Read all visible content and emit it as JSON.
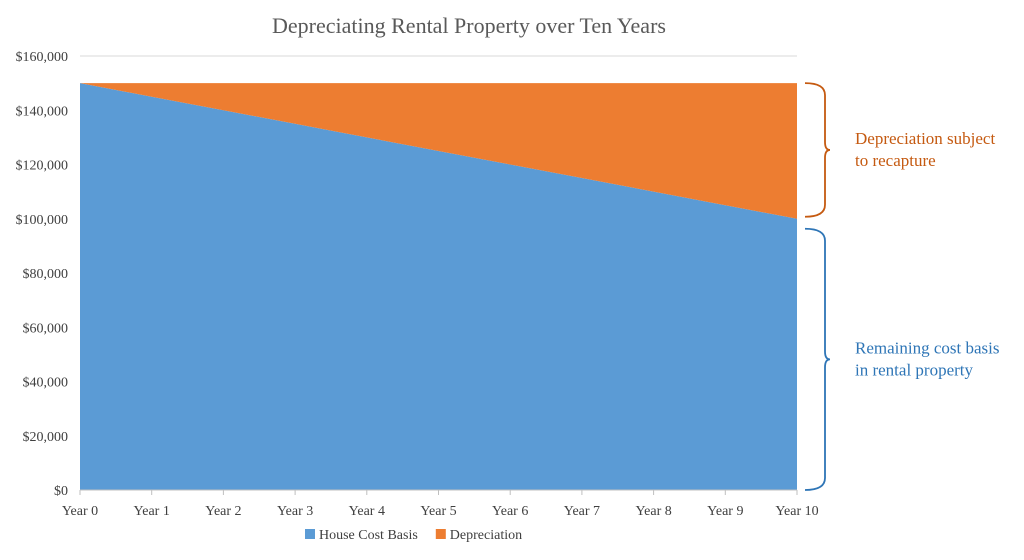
{
  "chart_data": {
    "type": "area",
    "stacked": true,
    "title": "Depreciating Rental Property over Ten Years",
    "xlabel": "",
    "ylabel": "",
    "categories": [
      "Year 0",
      "Year 1",
      "Year 2",
      "Year 3",
      "Year 4",
      "Year 5",
      "Year 6",
      "Year 7",
      "Year 8",
      "Year 9",
      "Year 10"
    ],
    "ylim": [
      0,
      160000
    ],
    "yticks": [
      0,
      20000,
      40000,
      60000,
      80000,
      100000,
      120000,
      140000,
      160000
    ],
    "ytick_labels": [
      "$0",
      "$20,000",
      "$40,000",
      "$60,000",
      "$80,000",
      "$100,000",
      "$120,000",
      "$140,000",
      "$160,000"
    ],
    "grid": true,
    "legend_position": "bottom",
    "series": [
      {
        "name": "House Cost Basis",
        "color": "#5B9BD5",
        "values": [
          150000,
          145000,
          140000,
          135000,
          130000,
          125000,
          120000,
          115000,
          110000,
          105000,
          100000
        ]
      },
      {
        "name": "Depreciation",
        "color": "#ED7D31",
        "values": [
          0,
          5000,
          10000,
          15000,
          20000,
          25000,
          30000,
          35000,
          40000,
          45000,
          50000
        ]
      }
    ],
    "annotations": [
      {
        "text_lines": [
          "Depreciation subject",
          "to recapture"
        ],
        "color": "#C55A11",
        "span": [
          100000,
          150000
        ]
      },
      {
        "text_lines": [
          "Remaining cost basis",
          "in rental property"
        ],
        "color": "#2E75B6",
        "span": [
          0,
          100000
        ]
      }
    ]
  }
}
